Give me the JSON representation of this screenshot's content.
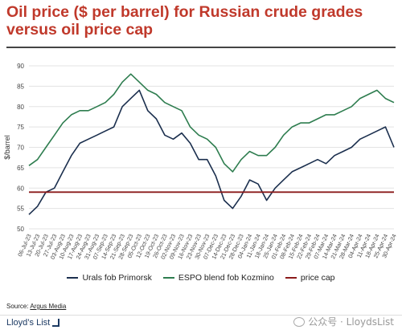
{
  "chart_data": {
    "type": "line",
    "title": "Oil price ($ per barrel) for Russian crude grades versus oil price cap",
    "ylabel": "$/barrel",
    "ylim": [
      50,
      90
    ],
    "yticks": [
      50,
      55,
      60,
      65,
      70,
      75,
      80,
      85,
      90
    ],
    "x_tick_labels": [
      "06-Jul-23",
      "13-Jul-23",
      "20-Jul-23",
      "27-Jul-23",
      "03-Aug-23",
      "10-Aug-23",
      "17-Aug-23",
      "24-Aug-23",
      "31-Aug-23",
      "07-Sep-23",
      "14-Sep-23",
      "21-Sep-23",
      "28-Sep-23",
      "05-Oct-23",
      "12-Oct-23",
      "19-Oct-23",
      "26-Oct-23",
      "02-Nov-23",
      "09-Nov-23",
      "16-Nov-23",
      "23-Nov-23",
      "30-Nov-23",
      "07-Dec-23",
      "14-Dec-23",
      "21-Dec-23",
      "28-Dec-23",
      "04-Jan-24",
      "11-Jan-24",
      "18-Jan-24",
      "25-Jan-24",
      "01-Feb-24",
      "08-Feb-24",
      "15-Feb-24",
      "22-Feb-24",
      "29-Feb-24",
      "07-Mar-24",
      "14-Mar-24",
      "21-Mar-24",
      "28-Mar-24",
      "04-Apr-24",
      "11-Apr-24",
      "18-Apr-24",
      "25-Apr-24",
      "30-Apr-24"
    ],
    "grid": "horizontal",
    "legend_position": "bottom",
    "series": [
      {
        "name": "Urals fob Primorsk",
        "color": "#1b2f4e",
        "values": [
          53.5,
          55.5,
          59,
          60,
          64,
          68,
          71,
          72,
          73,
          74,
          75,
          80,
          82,
          84,
          79,
          77,
          73,
          72,
          73.5,
          71,
          67,
          67,
          63,
          57,
          55,
          58,
          62,
          61,
          57,
          60,
          62,
          64,
          65,
          66,
          67,
          66,
          68,
          69,
          70,
          72,
          73,
          74,
          75,
          70
        ]
      },
      {
        "name": "ESPO blend fob Kozmino",
        "color": "#2e7d4f",
        "values": [
          65.5,
          67,
          70,
          73,
          76,
          78,
          79,
          79,
          80,
          81,
          83,
          86,
          88,
          86,
          84,
          83,
          81,
          80,
          79,
          75,
          73,
          72,
          70,
          66,
          64,
          67,
          69,
          68,
          68,
          70,
          73,
          75,
          76,
          76,
          77,
          78,
          78,
          79,
          80,
          82,
          83,
          84,
          82,
          81
        ]
      },
      {
        "name": "price cap",
        "color": "#8b1a1a",
        "values": [
          59,
          59,
          59,
          59,
          59,
          59,
          59,
          59,
          59,
          59,
          59,
          59,
          59,
          59,
          59,
          59,
          59,
          59,
          59,
          59,
          59,
          59,
          59,
          59,
          59,
          59,
          59,
          59,
          59,
          59,
          59,
          59,
          59,
          59,
          59,
          59,
          59,
          59,
          59,
          59,
          59,
          59,
          59,
          59
        ]
      }
    ]
  },
  "source": {
    "prefix": "Source: ",
    "name": "Argus Media"
  },
  "brand": {
    "logo_text": "Lloyd’s List",
    "watermark": "公众号 · LloydsList"
  }
}
